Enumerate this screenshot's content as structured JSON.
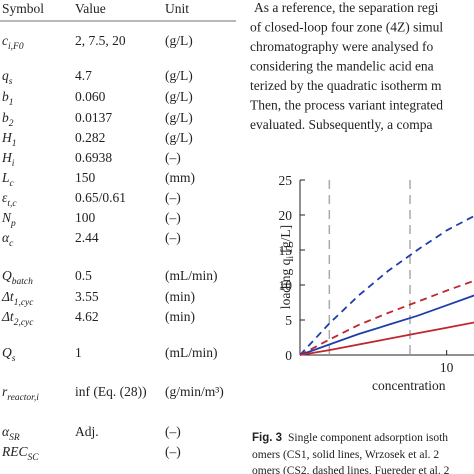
{
  "table": {
    "header": [
      "Symbol",
      "Value",
      "Unit"
    ],
    "rows": [
      {
        "sym": "c",
        "sub": "i,F0",
        "value": "2, 7.5, 20",
        "unit": "(g/L)"
      },
      {
        "sym": "q",
        "sub": "s",
        "value": "4.7",
        "unit": "(g/L)"
      },
      {
        "sym": "b",
        "sub": "1",
        "value": "0.060",
        "unit": "(g/L)"
      },
      {
        "sym": "b",
        "sub": "2",
        "value": "0.0137",
        "unit": "(g/L)"
      },
      {
        "sym": "H",
        "sub": "1",
        "value": "0.282",
        "unit": "(g/L)"
      },
      {
        "sym": "H",
        "sub": "i",
        "value": "0.6938",
        "unit": "(–)"
      },
      {
        "sym": "L",
        "sub": "c",
        "value": "150",
        "unit": "(mm)"
      },
      {
        "sym": "ε",
        "sub": "t,c",
        "value": "0.65/0.61",
        "unit": "(–)"
      },
      {
        "sym": "N",
        "sub": "p",
        "value": "100",
        "unit": "(–)"
      },
      {
        "sym": "α",
        "sub": "c",
        "value": "2.44",
        "unit": "(–)"
      },
      {
        "sym": "Q",
        "sub": "batch",
        "value": "0.5",
        "unit": "(mL/min)"
      },
      {
        "sym": "Δt",
        "sub": "1,cyc",
        "value": "3.55",
        "unit": "(min)"
      },
      {
        "sym": "Δt",
        "sub": "2,cyc",
        "value": "4.62",
        "unit": "(min)"
      },
      {
        "sym": "Q",
        "sub": "s",
        "value": "1",
        "unit": "(mL/min)"
      },
      {
        "sym": "r",
        "sub": "reactor,i",
        "value": "inf (Eq. (28))",
        "unit": "(g/min/m³)"
      },
      {
        "sym": "α",
        "sub": "SR",
        "value": "Adj.",
        "unit": "(–)"
      },
      {
        "sym": "REC",
        "sub": "SC",
        "unit": "(–)"
      }
    ]
  },
  "paragraph": [
    "As a reference, the separation regi",
    "of closed-loop four zone (4Z) simul",
    "chromatography were analysed fo",
    "considering the mandelic acid ena",
    "terized by the quadratic isotherm m",
    "Then, the process variant integrated",
    "evaluated. Subsequently, a compa"
  ],
  "chart_data": {
    "type": "line",
    "ylabel": "loading q",
    "ylabel_sub": "i",
    "ylabel_unit": " [g/L]",
    "xlabel": "concentration",
    "x": [
      0,
      2,
      4,
      6,
      8,
      10,
      12
    ],
    "xlim": [
      0,
      12
    ],
    "xticks": [
      10
    ],
    "ylim": [
      0,
      25
    ],
    "yticks": [
      0,
      5,
      10,
      15,
      20,
      25
    ],
    "vlines": [
      2,
      7.5
    ],
    "series": [
      {
        "color": "#1f3fa8",
        "dash": true,
        "values": [
          0,
          4.5,
          8.5,
          12,
          15,
          17.8,
          20
        ]
      },
      {
        "color": "#c0262d",
        "dash": true,
        "values": [
          0,
          2.2,
          4.3,
          6.0,
          7.6,
          9.2,
          10.7
        ]
      },
      {
        "color": "#1f3fa8",
        "dash": false,
        "values": [
          0,
          1.5,
          3.0,
          4.3,
          5.6,
          7.1,
          8.6
        ]
      },
      {
        "color": "#c0262d",
        "dash": false,
        "values": [
          0,
          0.7,
          1.5,
          2.3,
          3.1,
          3.9,
          4.7
        ]
      }
    ]
  },
  "caption": {
    "label": "Fig. 3",
    "lines": [
      "Single component adsorption isoth",
      "omers (CS1, solid lines, Wrzosek et al. 2",
      "omers (CS2, dashed lines, Fuereder et al. 2"
    ]
  }
}
